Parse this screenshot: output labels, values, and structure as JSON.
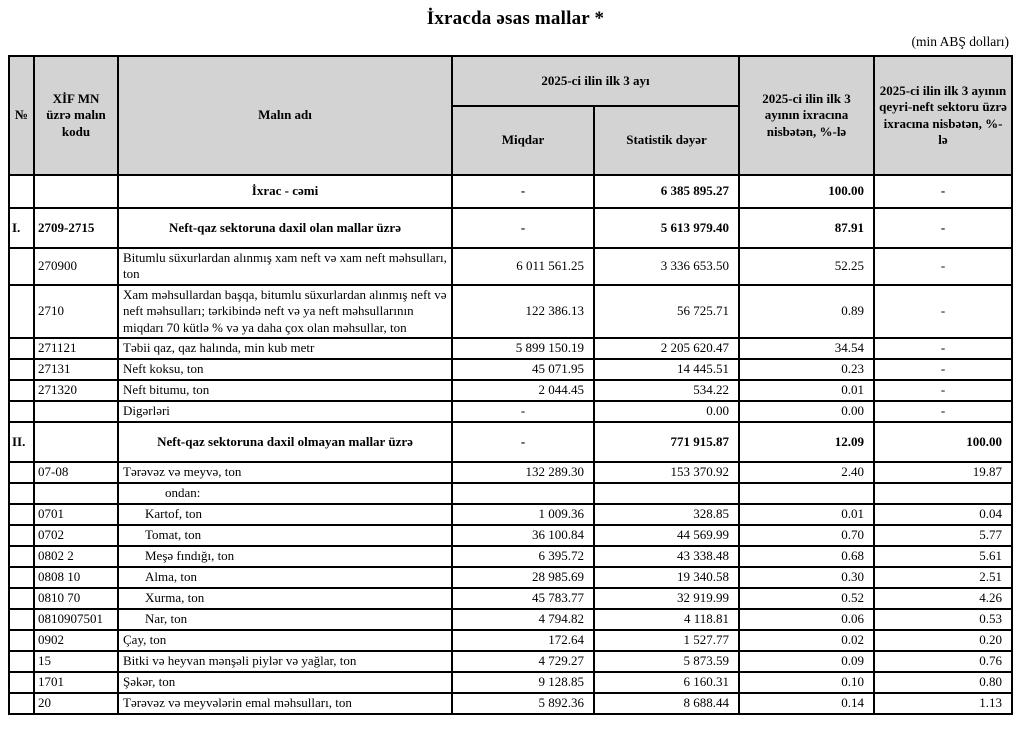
{
  "page": {
    "title": "İxracda əsas mallar *",
    "unit_note": "(min ABŞ dolları)"
  },
  "colors": {
    "header_bg": "#d3d3d3",
    "border": "#000000",
    "text": "#000000"
  },
  "table": {
    "headers": {
      "no": "№",
      "code": "XİF MN üzrə malın kodu",
      "name": "Malın adı",
      "period_group": "2025-ci ilin ilk 3 ayı",
      "quantity": "Miqdar",
      "stat_value": "Statistik dəyər",
      "pct_export": "2025-ci ilin ilk 3 ayının ixracına nisbətən, %-lə",
      "pct_nonoil": "2025-ci ilin ilk 3 ayının qeyri-neft sektoru üzrə ixracına nisbətən, %-lə"
    },
    "rows": [
      {
        "no": "",
        "code": "",
        "name": "İxrac - cəmi",
        "qty": "-",
        "value": "6 385 895.27",
        "pct_export": "100.00",
        "pct_nonoil": "-",
        "kind": "total",
        "indent": "none"
      },
      {
        "no": "I.",
        "code": "2709-2715",
        "name": "Neft-qaz sektoruna daxil olan mallar üzrə",
        "qty": "-",
        "value": "5 613 979.40",
        "pct_export": "87.91",
        "pct_nonoil": "-",
        "kind": "section",
        "indent": "none"
      },
      {
        "no": "",
        "code": "270900",
        "name": "Bitumlu süxurlardan alınmış xam neft və xam neft məhsulları, ton",
        "qty": "6 011 561.25",
        "value": "3 336 653.50",
        "pct_export": "52.25",
        "pct_nonoil": "-",
        "kind": "item",
        "indent": "none"
      },
      {
        "no": "",
        "code": "2710",
        "name": "Xam məhsullardan başqa, bitumlu süxurlardan alınmış neft və neft məhsulları; tərkibində neft və ya neft məhsullarının miqdarı 70 kütlə % və ya daha çox olan məhsullar, ton",
        "qty": "122 386.13",
        "value": "56 725.71",
        "pct_export": "0.89",
        "pct_nonoil": "-",
        "kind": "item",
        "indent": "none"
      },
      {
        "no": "",
        "code": "271121",
        "name": "Təbii qaz, qaz halında, min kub metr",
        "qty": "5 899 150.19",
        "value": "2 205 620.47",
        "pct_export": "34.54",
        "pct_nonoil": "-",
        "kind": "item",
        "indent": "none"
      },
      {
        "no": "",
        "code": "27131",
        "name": "Neft koksu, ton",
        "qty": "45 071.95",
        "value": "14 445.51",
        "pct_export": "0.23",
        "pct_nonoil": "-",
        "kind": "item",
        "indent": "none"
      },
      {
        "no": "",
        "code": "271320",
        "name": "Neft bitumu, ton",
        "qty": "2 044.45",
        "value": "534.22",
        "pct_export": "0.01",
        "pct_nonoil": "-",
        "kind": "item",
        "indent": "none"
      },
      {
        "no": "",
        "code": "",
        "name": "Digərləri",
        "qty": "-",
        "value": "0.00",
        "pct_export": "0.00",
        "pct_nonoil": "-",
        "kind": "item",
        "indent": "none"
      },
      {
        "no": "II.",
        "code": "",
        "name": "Neft-qaz sektoruna daxil olmayan mallar üzrə",
        "qty": "-",
        "value": "771 915.87",
        "pct_export": "12.09",
        "pct_nonoil": "100.00",
        "kind": "section",
        "indent": "none"
      },
      {
        "no": "",
        "code": "07-08",
        "name": "Tərəvəz və meyvə, ton",
        "qty": "132 289.30",
        "value": "153 370.92",
        "pct_export": "2.40",
        "pct_nonoil": "19.87",
        "kind": "item",
        "indent": "none"
      },
      {
        "no": "",
        "code": "",
        "name": "ondan:",
        "qty": "",
        "value": "",
        "pct_export": "",
        "pct_nonoil": "",
        "kind": "item",
        "indent": "ondan"
      },
      {
        "no": "",
        "code": "0701",
        "name": "Kartof, ton",
        "qty": "1 009.36",
        "value": "328.85",
        "pct_export": "0.01",
        "pct_nonoil": "0.04",
        "kind": "item",
        "indent": "sub"
      },
      {
        "no": "",
        "code": "0702",
        "name": "Tomat, ton",
        "qty": "36 100.84",
        "value": "44 569.99",
        "pct_export": "0.70",
        "pct_nonoil": "5.77",
        "kind": "item",
        "indent": "sub"
      },
      {
        "no": "",
        "code": "0802 2",
        "name": "Meşə fındığı, ton",
        "qty": "6 395.72",
        "value": "43 338.48",
        "pct_export": "0.68",
        "pct_nonoil": "5.61",
        "kind": "item",
        "indent": "sub"
      },
      {
        "no": "",
        "code": "0808 10",
        "name": "Alma, ton",
        "qty": "28 985.69",
        "value": "19 340.58",
        "pct_export": "0.30",
        "pct_nonoil": "2.51",
        "kind": "item",
        "indent": "sub"
      },
      {
        "no": "",
        "code": "0810 70",
        "name": "Xurma, ton",
        "qty": "45 783.77",
        "value": "32 919.99",
        "pct_export": "0.52",
        "pct_nonoil": "4.26",
        "kind": "item",
        "indent": "sub"
      },
      {
        "no": "",
        "code": "0810907501",
        "name": "Nar, ton",
        "qty": "4 794.82",
        "value": "4 118.81",
        "pct_export": "0.06",
        "pct_nonoil": "0.53",
        "kind": "item",
        "indent": "sub"
      },
      {
        "no": "",
        "code": "0902",
        "name": "Çay, ton",
        "qty": "172.64",
        "value": "1 527.77",
        "pct_export": "0.02",
        "pct_nonoil": "0.20",
        "kind": "item",
        "indent": "none"
      },
      {
        "no": "",
        "code": "15",
        "name": "Bitki və heyvan mənşəli piylər və yağlar, ton",
        "qty": "4 729.27",
        "value": "5 873.59",
        "pct_export": "0.09",
        "pct_nonoil": "0.76",
        "kind": "item",
        "indent": "none"
      },
      {
        "no": "",
        "code": "1701",
        "name": "Şəkər, ton",
        "qty": "9 128.85",
        "value": "6 160.31",
        "pct_export": "0.10",
        "pct_nonoil": "0.80",
        "kind": "item",
        "indent": "none"
      },
      {
        "no": "",
        "code": "20",
        "name": "Tərəvəz və meyvələrin emal məhsulları, ton",
        "qty": "5 892.36",
        "value": "8 688.44",
        "pct_export": "0.14",
        "pct_nonoil": "1.13",
        "kind": "item",
        "indent": "none"
      }
    ]
  }
}
